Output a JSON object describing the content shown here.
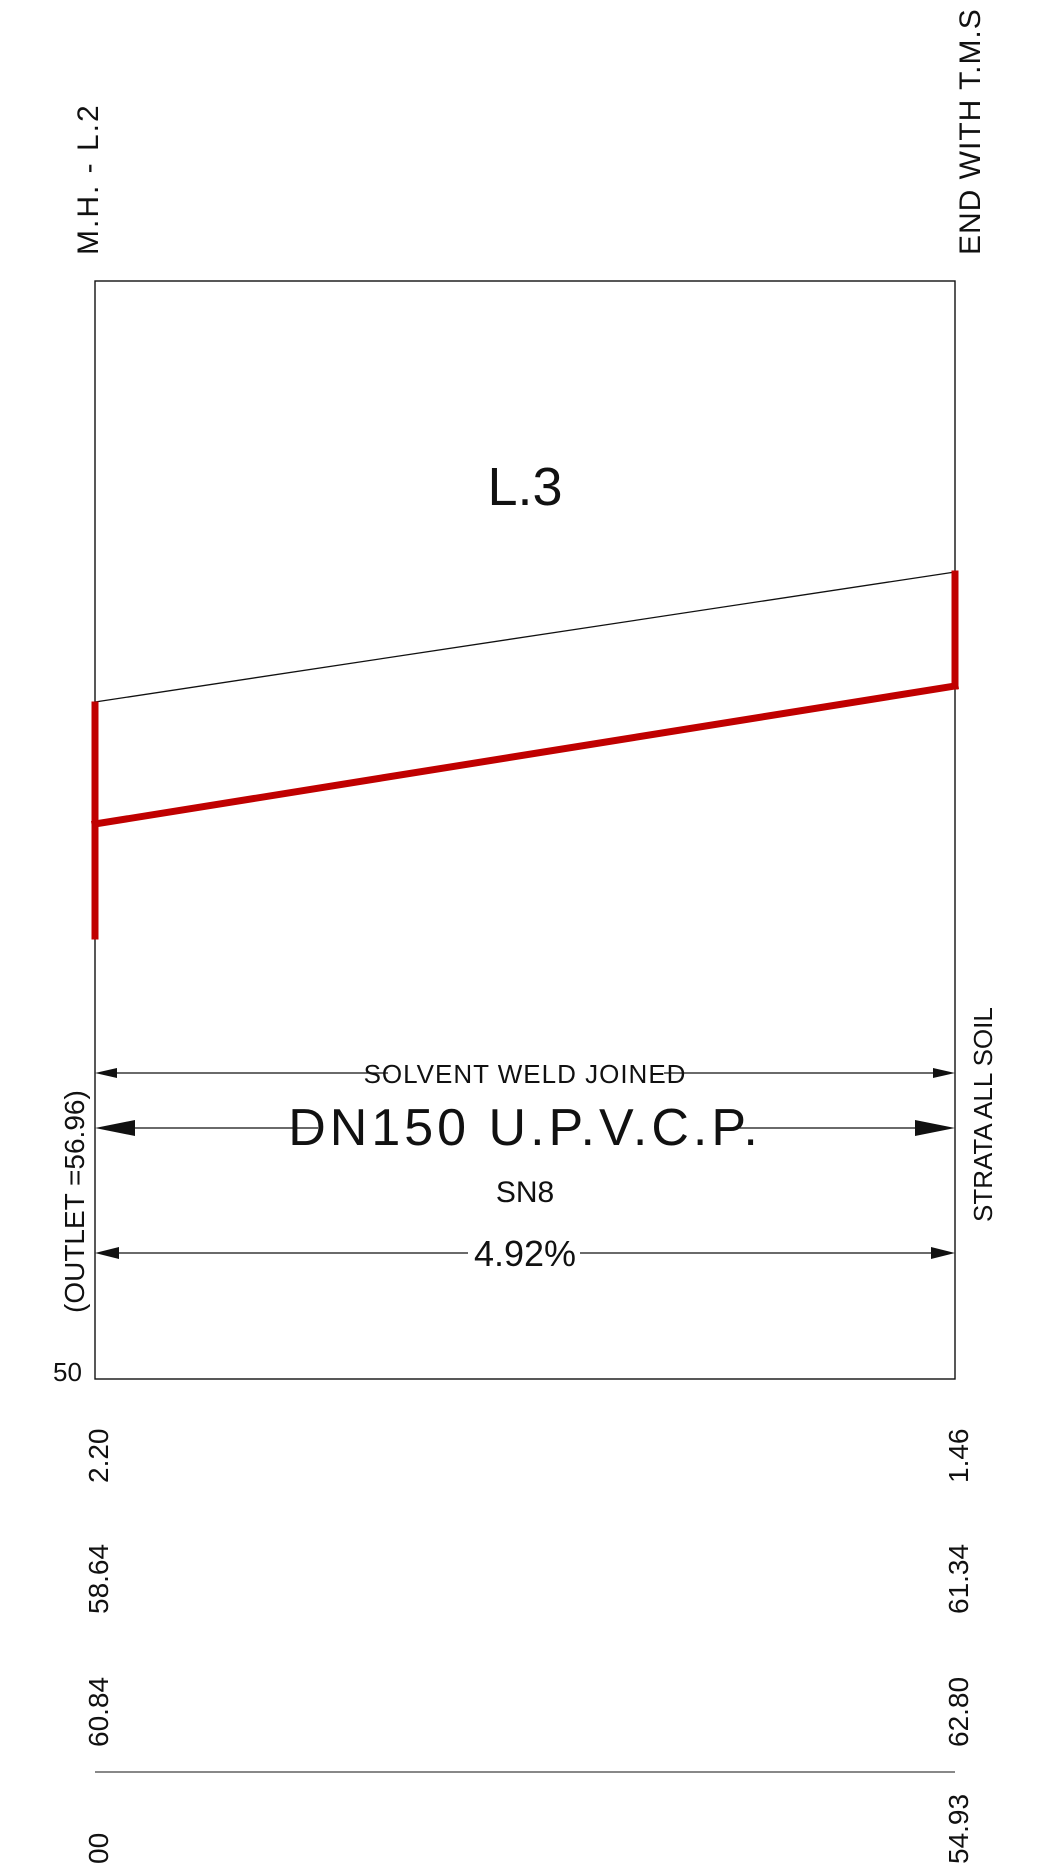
{
  "header": {
    "left_label": "M.H. - L.2",
    "right_label": "END WITH T.M.S"
  },
  "profile": {
    "section_label": "L.3",
    "joint_text": "SOLVENT WELD JOINED",
    "pipe_text": "DN150 U.P.V.C.P.",
    "class_text": "SN8",
    "gradient_text": "4.92%",
    "outlet_text": "(OUTLET =56.96)",
    "strata_text": "STRATA ALL SOIL",
    "datum_fragment": "50",
    "pipe_color": "#c00000"
  },
  "table": {
    "left_values": [
      "2.20",
      "58.64",
      "60.84",
      "00"
    ],
    "right_values": [
      "1.46",
      "61.34",
      "62.80",
      "54.93"
    ]
  }
}
